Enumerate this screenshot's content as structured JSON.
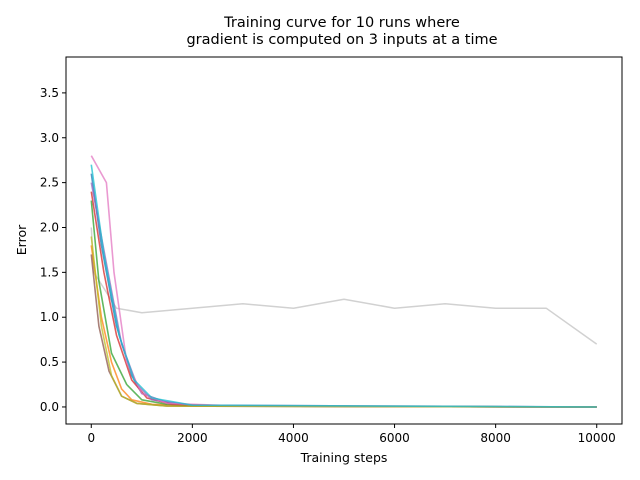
{
  "chart_data": {
    "type": "line",
    "title_line1": "Training curve for 10 runs where",
    "title_line2": "gradient is computed on 3 inputs at a time",
    "xlabel": "Training steps",
    "ylabel": "Error",
    "xlim": [
      -500,
      10500
    ],
    "ylim": [
      -0.19,
      3.9
    ],
    "x_ticks": [
      0,
      2000,
      4000,
      6000,
      8000,
      10000
    ],
    "x_tick_labels": [
      "0",
      "2000",
      "4000",
      "6000",
      "8000",
      "10000"
    ],
    "y_ticks": [
      0.0,
      0.5,
      1.0,
      1.5,
      2.0,
      2.5,
      3.0,
      3.5
    ],
    "y_tick_labels": [
      "0.0",
      "0.5",
      "1.0",
      "1.5",
      "2.0",
      "2.5",
      "3.0",
      "3.5"
    ],
    "grid": false,
    "legend": "none",
    "series": [
      {
        "color": "#bdbdbd",
        "values": [
          [
            0,
            2.0
          ],
          [
            50,
            1.5
          ],
          [
            500,
            1.1
          ],
          [
            1000,
            1.05
          ],
          [
            2000,
            1.1
          ],
          [
            3000,
            1.15
          ],
          [
            4000,
            1.1
          ],
          [
            5000,
            1.2
          ],
          [
            6000,
            1.1
          ],
          [
            7000,
            1.15
          ],
          [
            8000,
            1.1
          ],
          [
            9000,
            1.1
          ],
          [
            10000,
            0.7
          ]
        ]
      },
      {
        "color": "#1f77b4",
        "values": [
          [
            0,
            2.6
          ],
          [
            200,
            1.8
          ],
          [
            500,
            0.9
          ],
          [
            800,
            0.35
          ],
          [
            1000,
            0.15
          ],
          [
            1500,
            0.05
          ],
          [
            2000,
            0.02
          ],
          [
            4000,
            0.01
          ],
          [
            10000,
            0.0
          ]
        ]
      },
      {
        "color": "#ff7f0e",
        "values": [
          [
            0,
            1.8
          ],
          [
            200,
            1.0
          ],
          [
            400,
            0.5
          ],
          [
            600,
            0.2
          ],
          [
            800,
            0.08
          ],
          [
            1200,
            0.03
          ],
          [
            2000,
            0.01
          ],
          [
            10000,
            0.0
          ]
        ]
      },
      {
        "color": "#2ca02c",
        "values": [
          [
            0,
            2.3
          ],
          [
            150,
            1.4
          ],
          [
            400,
            0.6
          ],
          [
            700,
            0.25
          ],
          [
            1000,
            0.08
          ],
          [
            1500,
            0.03
          ],
          [
            3000,
            0.01
          ],
          [
            10000,
            0.0
          ]
        ]
      },
      {
        "color": "#d62728",
        "values": [
          [
            0,
            2.4
          ],
          [
            250,
            1.5
          ],
          [
            500,
            0.8
          ],
          [
            800,
            0.3
          ],
          [
            1100,
            0.1
          ],
          [
            1600,
            0.03
          ],
          [
            3000,
            0.01
          ],
          [
            10000,
            0.0
          ]
        ]
      },
      {
        "color": "#9467bd",
        "values": [
          [
            0,
            2.5
          ],
          [
            300,
            1.6
          ],
          [
            600,
            0.7
          ],
          [
            900,
            0.25
          ],
          [
            1200,
            0.08
          ],
          [
            2000,
            0.02
          ],
          [
            10000,
            0.0
          ]
        ]
      },
      {
        "color": "#8c564b",
        "values": [
          [
            0,
            1.7
          ],
          [
            150,
            0.9
          ],
          [
            350,
            0.4
          ],
          [
            600,
            0.12
          ],
          [
            900,
            0.04
          ],
          [
            1500,
            0.01
          ],
          [
            10000,
            0.0
          ]
        ]
      },
      {
        "color": "#e377c2",
        "values": [
          [
            0,
            2.8
          ],
          [
            300,
            2.5
          ],
          [
            450,
            1.5
          ],
          [
            700,
            0.5
          ],
          [
            1000,
            0.15
          ],
          [
            1500,
            0.04
          ],
          [
            3000,
            0.01
          ],
          [
            10000,
            0.0
          ]
        ]
      },
      {
        "color": "#bcbd22",
        "values": [
          [
            0,
            1.9
          ],
          [
            200,
            0.9
          ],
          [
            400,
            0.35
          ],
          [
            600,
            0.12
          ],
          [
            900,
            0.04
          ],
          [
            1500,
            0.01
          ],
          [
            10000,
            0.0
          ]
        ]
      },
      {
        "color": "#17becf",
        "values": [
          [
            0,
            2.7
          ],
          [
            250,
            1.7
          ],
          [
            550,
            0.8
          ],
          [
            850,
            0.3
          ],
          [
            1200,
            0.1
          ],
          [
            2000,
            0.02
          ],
          [
            10000,
            0.0
          ]
        ]
      }
    ]
  }
}
